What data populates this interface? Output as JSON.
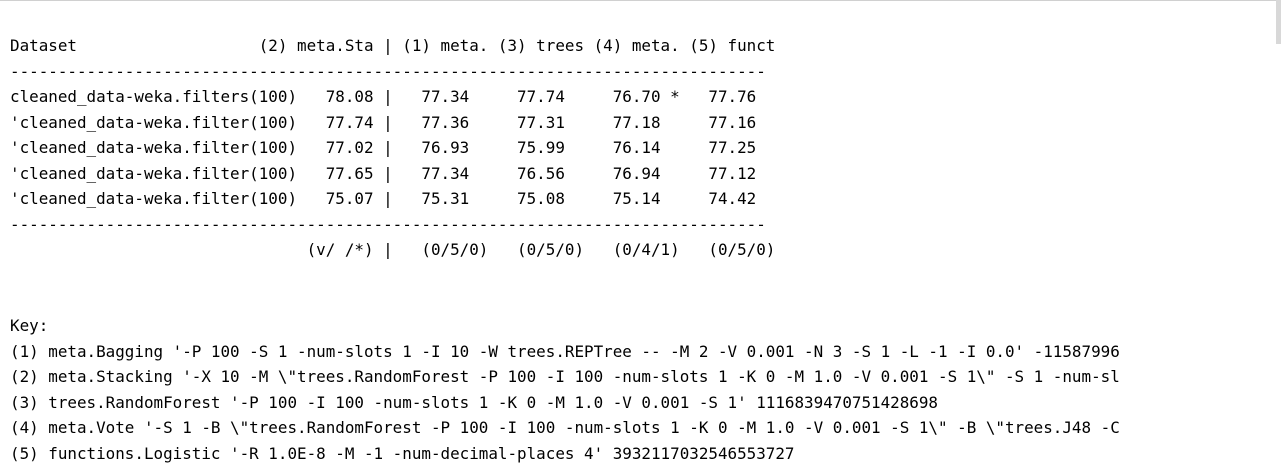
{
  "results_table": {
    "header": "Dataset                   (2) meta.Sta | (1) meta. (3) trees (4) meta. (5) funct",
    "separator": "-------------------------------------------------------------------------------",
    "rows": [
      "cleaned_data-weka.filters(100)   78.08 |   77.34     77.74     76.70 *   77.76",
      "'cleaned_data-weka.filter(100)   77.74 |   77.36     77.31     77.18     77.16",
      "'cleaned_data-weka.filter(100)   77.02 |   76.93     75.99     76.14     77.25",
      "'cleaned_data-weka.filter(100)   77.65 |   77.34     76.56     76.94     77.12",
      "'cleaned_data-weka.filter(100)   75.07 |   75.31     75.08     75.14     74.42"
    ],
    "summary": "                               (v/ /*) |   (0/5/0)   (0/5/0)   (0/4/1)   (0/5/0)"
  },
  "key": {
    "title": "Key:",
    "entries": [
      "(1) meta.Bagging '-P 100 -S 1 -num-slots 1 -I 10 -W trees.REPTree -- -M 2 -V 0.001 -N 3 -S 1 -L -1 -I 0.0' -11587996",
      "(2) meta.Stacking '-X 10 -M \\\"trees.RandomForest -P 100 -I 100 -num-slots 1 -K 0 -M 1.0 -V 0.001 -S 1\\\" -S 1 -num-sl",
      "(3) trees.RandomForest '-P 100 -I 100 -num-slots 1 -K 0 -M 1.0 -V 0.001 -S 1' 1116839470751428698",
      "(4) meta.Vote '-S 1 -B \\\"trees.RandomForest -P 100 -I 100 -num-slots 1 -K 0 -M 1.0 -V 0.001 -S 1\\\" -B \\\"trees.J48 -C",
      "(5) functions.Logistic '-R 1.0E-8 -M -1 -num-decimal-places 4' 3932117032546553727"
    ]
  }
}
